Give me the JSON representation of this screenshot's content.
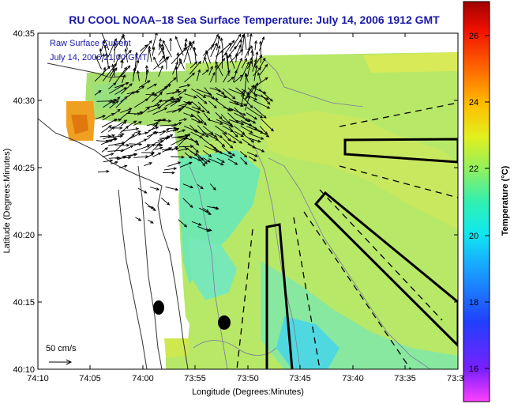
{
  "title": "RU COOL  NOAA–18  Sea Surface Temperature:  July 14, 2006 1912 GMT",
  "annotation": {
    "line1": "Raw Surface Current",
    "line2": "July 14, 2006 21:00 GMT"
  },
  "scale_label": "50 cm/s",
  "xlabel": "Longitude (Degrees:Minutes)",
  "ylabel": "Latitude (Degrees:Minutes)",
  "x_ticks": [
    "74:10",
    "74:05",
    "74:00",
    "73:55",
    "73:50",
    "73:45",
    "73:40",
    "73:35",
    "73:3"
  ],
  "y_ticks": [
    "40:35",
    "40:30",
    "40:25",
    "40:20",
    "40:15",
    "40:10"
  ],
  "colorbar": {
    "label": "Temperature (°C)",
    "ticks": [
      "26",
      "24",
      "22",
      "20",
      "18",
      "16"
    ],
    "range": [
      15,
      27
    ]
  },
  "colors": {
    "title": "#1a1aa8",
    "land": "#ffffff",
    "sst_main": "#b8e868",
    "sst_warm": "#f0a020",
    "sst_cool": "#40d8e8"
  }
}
